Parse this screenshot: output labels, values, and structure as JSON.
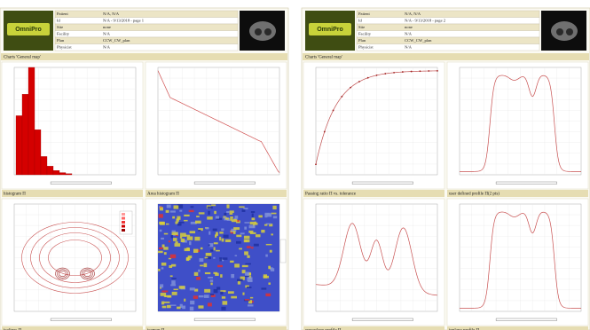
{
  "pages": [
    {
      "logo": "OmniPro",
      "header": [
        [
          "Patient",
          "N/A, N/A"
        ],
        [
          "Id",
          "N/A - 9/13/2018 - page 1"
        ],
        [
          "Site",
          "none"
        ],
        [
          "Facility",
          "N/A"
        ],
        [
          "Plan",
          "CCW_CW_plan"
        ],
        [
          "Physicist",
          "N/A"
        ]
      ],
      "section": "Charts 'General map'",
      "panels": [
        "histogram Π",
        "Area histogram Π",
        "isolines Π",
        "isomap Π"
      ]
    },
    {
      "logo": "OmniPro",
      "header": [
        [
          "Patient",
          "N/A, N/A"
        ],
        [
          "Id",
          "N/A - 9/13/2018 - page 2"
        ],
        [
          "Site",
          "none"
        ],
        [
          "Facility",
          "N/A"
        ],
        [
          "Plan",
          "CCW_CW_plan"
        ],
        [
          "Physicist",
          "N/A"
        ]
      ],
      "section": "Charts 'General map'",
      "panels": [
        "Passing ratio Π vs. tolerance",
        "user defined profile Π(2 pts)",
        "crossplane profile Π",
        "inplane profile Π"
      ]
    }
  ]
}
